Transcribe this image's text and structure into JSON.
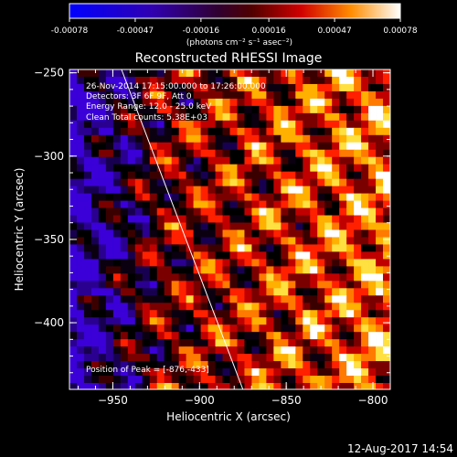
{
  "colorbar": {
    "ticks": [
      "-0.00078",
      "-0.00047",
      "-0.00016",
      "0.00016",
      "0.00047",
      "0.00078"
    ],
    "tick_values": [
      -0.00078,
      -0.00047,
      -0.00016,
      0.00016,
      0.00047,
      0.00078
    ],
    "units_label": "(photons cm⁻² s⁻¹ asec⁻²)"
  },
  "chart_data": {
    "type": "heatmap",
    "title": "Reconstructed RHESSI Image",
    "xlabel": "Heliocentric X (arcsec)",
    "ylabel": "Heliocentric Y (arcsec)",
    "xlim": [
      -975,
      -790
    ],
    "ylim": [
      -440,
      -248
    ],
    "xticks": [
      -950,
      -900,
      -850,
      -800
    ],
    "yticks": [
      -250,
      -300,
      -350,
      -400
    ],
    "xtick_labels": [
      "−950",
      "−900",
      "−850",
      "−800"
    ],
    "ytick_labels": [
      "−250",
      "−300",
      "−350",
      "−400"
    ],
    "zlim": [
      -0.00078,
      0.00078
    ],
    "limb_line": {
      "x": [
        -945,
        -875
      ],
      "y": [
        -248,
        -440
      ]
    },
    "annotations": [
      "26-Nov-2014 17:15:00.000 to 17:26:00.000",
      "Detectors: 3F 6F 9F, Att 0",
      "Energy Range: 12.0 - 25.0 keV",
      "Clean    Total counts: 5.38E+03"
    ],
    "peak_label": "Position of Peak = [-876,-433]"
  },
  "timestamp": "12-Aug-2017 14:54"
}
